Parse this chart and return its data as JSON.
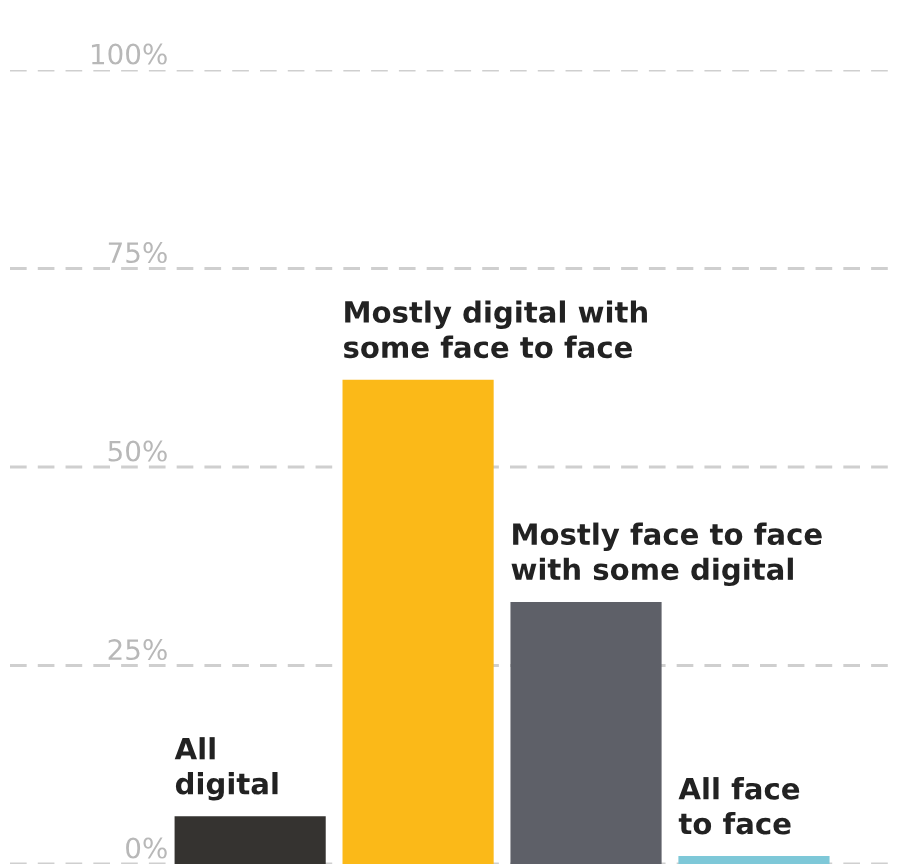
{
  "chart_data": {
    "type": "bar",
    "categories": [
      "All\ndigital",
      "Mostly digital with\nsome face to face",
      "Mostly face to face\nwith some digital",
      "All face\nto face"
    ],
    "values": [
      6,
      61,
      33,
      1
    ],
    "colors": [
      "#353330",
      "#fbb918",
      "#5e6068",
      "#7ec8d8"
    ],
    "ylim": [
      0,
      100
    ],
    "yticks": [
      {
        "value": 0,
        "label": "0%"
      },
      {
        "value": 25,
        "label": "25%"
      },
      {
        "value": 50,
        "label": "50%"
      },
      {
        "value": 75,
        "label": "75%"
      },
      {
        "value": 100,
        "label": "100%"
      }
    ],
    "grid": "y",
    "tick_labels": "y"
  }
}
